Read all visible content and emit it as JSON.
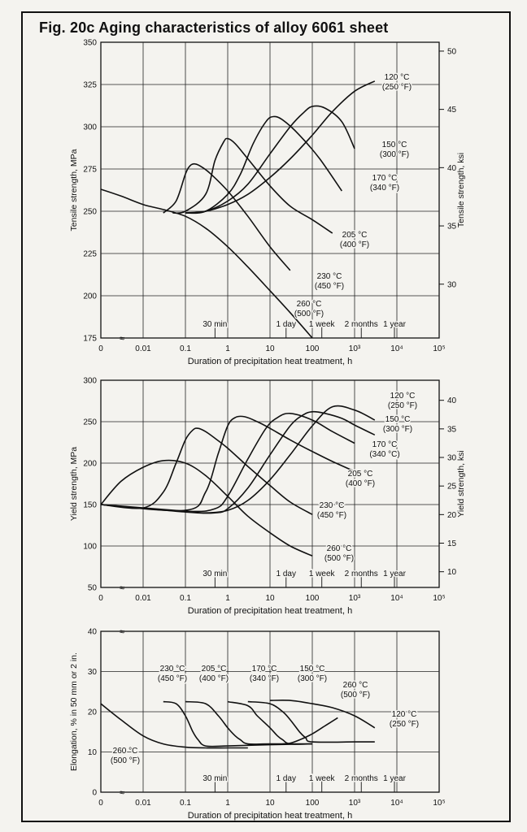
{
  "page": {
    "title": "Fig. 20c Aging characteristics of alloy 6061 sheet"
  },
  "chart_data": [
    {
      "type": "line",
      "title": "Tensile strength",
      "xlabel": "Duration of precipitation heat treatment, h",
      "ylabel": "Tensile strength, MPa",
      "y2label": "Tensile strength, ksi",
      "xscale": "log",
      "xlim": [
        0.001,
        100000
      ],
      "ylim": [
        175,
        350
      ],
      "y2lim": [
        25.4,
        50.8
      ],
      "grid": true,
      "x_tick_labels": [
        "0",
        "0.01",
        "0.1",
        "1",
        "10",
        "100",
        "10³",
        "10⁴",
        "10⁵"
      ],
      "y_tick_labels": [
        "175",
        "200",
        "225",
        "250",
        "275",
        "300",
        "325",
        "350"
      ],
      "y2_tick_labels": [
        "30",
        "35",
        "40",
        "45",
        "50"
      ],
      "time_markers": [
        "30 min",
        "1 day",
        "1 week",
        "2 months",
        "1 year"
      ],
      "series": [
        {
          "name": "260 °C (500 °F)",
          "x": [
            0.001,
            0.003,
            0.01,
            0.03,
            0.1,
            0.3,
            1,
            3,
            10,
            30,
            100
          ],
          "y": [
            263,
            259,
            254,
            251,
            247,
            240,
            229,
            217,
            203,
            190,
            175
          ]
        },
        {
          "name": "230 °C (450 °F)",
          "x": [
            0.03,
            0.06,
            0.1,
            0.13,
            0.17,
            0.25,
            0.4,
            1,
            3,
            10,
            30
          ],
          "y": [
            249,
            256,
            272,
            277,
            278,
            276,
            272,
            262,
            247,
            229,
            215
          ]
        },
        {
          "name": "205 °C (400 °F)",
          "x": [
            0.05,
            0.1,
            0.3,
            0.5,
            0.8,
            1,
            1.5,
            3,
            10,
            30,
            100,
            300
          ],
          "y": [
            249,
            250,
            260,
            280,
            291,
            293,
            290,
            281,
            265,
            253,
            245,
            237
          ]
        },
        {
          "name": "170 °C (340 °F)",
          "x": [
            0.1,
            0.3,
            1,
            2,
            4,
            8,
            12,
            20,
            50,
            150,
            500
          ],
          "y": [
            249,
            250,
            260,
            272,
            290,
            303,
            306,
            304,
            295,
            281,
            262
          ]
        },
        {
          "name": "150 °C (300 °F)",
          "x": [
            0.1,
            0.3,
            1,
            3,
            10,
            30,
            60,
            100,
            200,
            500,
            1000
          ],
          "y": [
            249,
            250,
            256,
            266,
            284,
            300,
            308,
            312,
            311,
            303,
            287
          ]
        },
        {
          "name": "120 °C (250 °F)",
          "x": [
            0.1,
            0.3,
            1,
            3,
            10,
            30,
            100,
            300,
            1000,
            3000
          ],
          "y": [
            249,
            250,
            254,
            260,
            270,
            281,
            295,
            309,
            321,
            327
          ]
        }
      ]
    },
    {
      "type": "line",
      "title": "Yield strength",
      "xlabel": "Duration of precipitation heat treatment, h",
      "ylabel": "Yield strength, MPa",
      "y2label": "Yield strength, ksi",
      "xscale": "log",
      "xlim": [
        0.001,
        100000
      ],
      "ylim": [
        50,
        300
      ],
      "y2lim": [
        7.25,
        43.5
      ],
      "grid": true,
      "x_tick_labels": [
        "0",
        "0.01",
        "0.1",
        "1",
        "10",
        "100",
        "10³",
        "10⁴",
        "10⁵"
      ],
      "y_tick_labels": [
        "50",
        "100",
        "150",
        "200",
        "250",
        "300"
      ],
      "y2_tick_labels": [
        "10",
        "15",
        "20",
        "25",
        "30",
        "35",
        "40"
      ],
      "time_markers": [
        "30 min",
        "1 day",
        "1 week",
        "2 months",
        "1 year"
      ],
      "series": [
        {
          "name": "260 °C (500 °F)",
          "x": [
            0.001,
            0.003,
            0.01,
            0.03,
            0.1,
            0.3,
            1,
            3,
            10,
            30,
            100
          ],
          "y": [
            150,
            178,
            195,
            203,
            200,
            185,
            160,
            136,
            116,
            100,
            88
          ]
        },
        {
          "name": "230 °C (450 °F)",
          "x": [
            0.001,
            0.01,
            0.03,
            0.06,
            0.1,
            0.15,
            0.2,
            0.3,
            0.5,
            1,
            3,
            10,
            30,
            100
          ],
          "y": [
            150,
            146,
            165,
            200,
            228,
            240,
            242,
            238,
            230,
            218,
            196,
            173,
            153,
            138
          ]
        },
        {
          "name": "205 °C (400 °F)",
          "x": [
            0.001,
            0.1,
            0.3,
            0.6,
            1,
            1.5,
            2.5,
            5,
            10,
            30,
            100,
            300,
            1000
          ],
          "y": [
            150,
            143,
            165,
            212,
            245,
            255,
            256,
            250,
            242,
            228,
            214,
            202,
            190
          ]
        },
        {
          "name": "170 °C (340 °F)",
          "x": [
            0.001,
            0.1,
            0.5,
            1,
            3,
            8,
            15,
            30,
            100,
            300,
            1000
          ],
          "y": [
            150,
            142,
            145,
            160,
            205,
            242,
            255,
            260,
            252,
            238,
            224
          ]
        },
        {
          "name": "150 °C (300 °F)",
          "x": [
            0.001,
            0.1,
            0.5,
            1,
            3,
            10,
            30,
            60,
            100,
            200,
            500,
            1000,
            3000
          ],
          "y": [
            150,
            141,
            140,
            145,
            170,
            210,
            245,
            258,
            262,
            260,
            254,
            246,
            234
          ]
        },
        {
          "name": "120 °C (250 °F)",
          "x": [
            0.001,
            0.1,
            0.3,
            1,
            3,
            10,
            30,
            100,
            300,
            1000,
            3000
          ],
          "y": [
            150,
            142,
            140,
            143,
            155,
            180,
            210,
            245,
            268,
            264,
            252
          ]
        }
      ]
    },
    {
      "type": "line",
      "title": "Elongation",
      "xlabel": "Duration of precipitation heat treatment, h",
      "ylabel": "Elongation, % in 50 mm or 2 in.",
      "xscale": "log",
      "xlim": [
        0.001,
        100000
      ],
      "ylim": [
        0,
        40
      ],
      "grid": true,
      "x_tick_labels": [
        "0",
        "0.01",
        "0.1",
        "1",
        "10",
        "100",
        "10³",
        "10⁴",
        "10⁵"
      ],
      "y_tick_labels": [
        "0",
        "10",
        "20",
        "30",
        "40"
      ],
      "time_markers": [
        "30 min",
        "1 day",
        "1 week",
        "2 months",
        "1 year"
      ],
      "series": [
        {
          "name": "260 °C (500 °F)",
          "x": [
            0.001,
            0.003,
            0.01,
            0.03,
            0.1,
            0.3,
            1,
            3
          ],
          "y": [
            22,
            18,
            14,
            12,
            11.2,
            11,
            11,
            11
          ]
        },
        {
          "name": "230 °C (450 °F)",
          "x": [
            0.03,
            0.06,
            0.1,
            0.15,
            0.2,
            0.3,
            1,
            10,
            100
          ],
          "y": [
            22.5,
            22,
            19,
            15,
            13,
            11.5,
            11.5,
            11.8,
            12
          ]
        },
        {
          "name": "205 °C (400 °F)",
          "x": [
            0.1,
            0.3,
            0.6,
            1,
            1.5,
            2,
            3,
            10,
            100
          ],
          "y": [
            22.5,
            22,
            19,
            16,
            14,
            13,
            12,
            12,
            12
          ]
        },
        {
          "name": "170 °C (340 °F)",
          "x": [
            1,
            3,
            5,
            10,
            15,
            20,
            30,
            100
          ],
          "y": [
            22.5,
            21.5,
            19,
            16,
            14,
            13,
            12,
            12
          ]
        },
        {
          "name": "150 °C (300 °F)",
          "x": [
            3,
            10,
            20,
            30,
            50,
            70,
            100,
            1000,
            3000
          ],
          "y": [
            22.5,
            22,
            20,
            18,
            15,
            13.5,
            12.5,
            12.5,
            12.5
          ]
        },
        {
          "name": "120 °C (250 °F)",
          "x": [
            10,
            30,
            100,
            300,
            1000,
            3000
          ],
          "y": [
            22.8,
            22.8,
            22,
            21,
            19,
            16
          ]
        },
        {
          "name": "260 °C (500 °F) long-term",
          "x": [
            20,
            30,
            50,
            100,
            200,
            400
          ],
          "y": [
            12,
            12.2,
            13,
            14.5,
            16.5,
            18.5
          ]
        }
      ]
    }
  ]
}
